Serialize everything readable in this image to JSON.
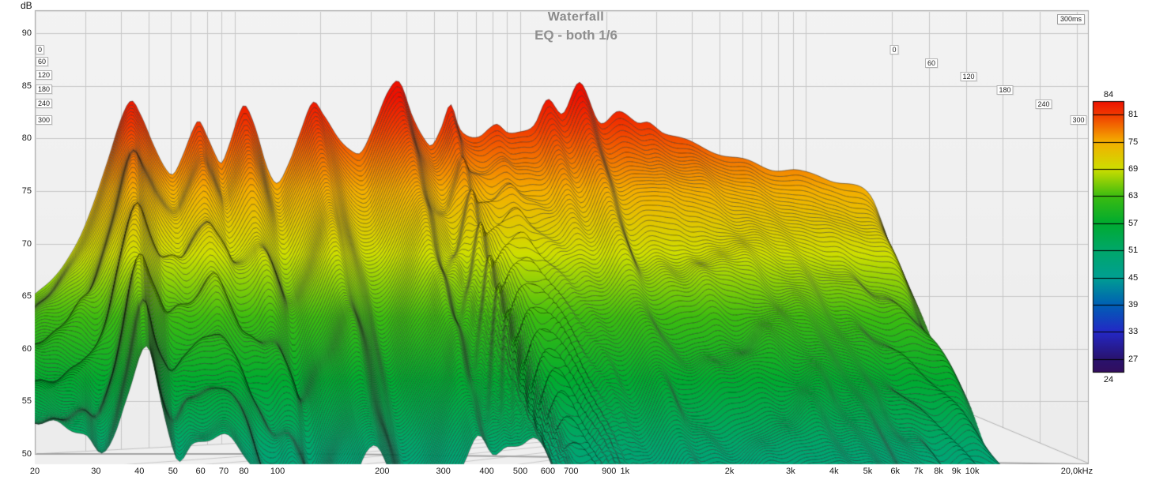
{
  "header": {
    "title": "Waterfall",
    "subtitle": "EQ - both 1/6",
    "window_badge": "300ms"
  },
  "chart_data": {
    "type": "waterfall",
    "title": "Waterfall",
    "subtitle": "EQ - both 1/6",
    "x_axis": {
      "unit": "Hz",
      "scale": "log",
      "min": 20,
      "max": 20000,
      "tick_values": [
        20,
        30,
        40,
        50,
        60,
        70,
        80,
        100,
        200,
        300,
        400,
        500,
        600,
        700,
        900,
        1000,
        2000,
        3000,
        4000,
        5000,
        6000,
        7000,
        8000,
        9000,
        10000,
        20000
      ],
      "tick_labels": [
        "20",
        "30",
        "40",
        "50",
        "60",
        "70",
        "80",
        "100",
        "200",
        "300",
        "400",
        "500",
        "600",
        "700",
        "900",
        "1k",
        "2k",
        "3k",
        "4k",
        "5k",
        "6k",
        "7k",
        "8k",
        "9k",
        "10k",
        "20,0kHz"
      ]
    },
    "y_axis": {
      "unit": "dB",
      "min": 50,
      "max": 90,
      "ticks": [
        90,
        85,
        80,
        75,
        70,
        65,
        60,
        55,
        50
      ]
    },
    "time_axis": {
      "unit": "ms",
      "min": 0,
      "max": 300,
      "window_label": "300ms",
      "ticks": [
        "0",
        "60",
        "120",
        "180",
        "240",
        "300"
      ]
    },
    "legend": {
      "top_value": "84",
      "bottom_value": "24",
      "side_values": [
        81,
        75,
        69,
        63,
        57,
        51,
        45,
        39,
        33,
        27
      ],
      "stops": [
        {
          "db": 84,
          "color": "#ee1100"
        },
        {
          "db": 81,
          "color": "#f13a00"
        },
        {
          "db": 75,
          "color": "#f4ae00"
        },
        {
          "db": 69,
          "color": "#cede00"
        },
        {
          "db": 63,
          "color": "#3cbc10"
        },
        {
          "db": 57,
          "color": "#00ab30"
        },
        {
          "db": 51,
          "color": "#00a76a"
        },
        {
          "db": 45,
          "color": "#009f92"
        },
        {
          "db": 39,
          "color": "#0060b4"
        },
        {
          "db": 33,
          "color": "#2428c6"
        },
        {
          "db": 27,
          "color": "#29136e"
        },
        {
          "db": 24,
          "color": "#330e5e"
        }
      ]
    },
    "slices": 100,
    "floor_db": 50,
    "envelope_t0": [
      [
        20,
        65.0
      ],
      [
        23,
        66.8
      ],
      [
        26,
        68.6
      ],
      [
        29,
        70.6
      ],
      [
        32,
        73.5
      ],
      [
        36,
        78.0
      ],
      [
        40,
        82.0
      ],
      [
        43.5,
        83.6
      ],
      [
        47,
        82.0
      ],
      [
        52,
        79.2
      ],
      [
        57,
        77.3
      ],
      [
        61,
        76.8
      ],
      [
        66,
        78.6
      ],
      [
        71,
        80.6
      ],
      [
        75,
        81.5
      ],
      [
        80,
        80.0
      ],
      [
        86,
        78.2
      ],
      [
        90,
        77.6
      ],
      [
        96,
        79.6
      ],
      [
        104,
        82.6
      ],
      [
        109,
        83.3
      ],
      [
        118,
        81.0
      ],
      [
        130,
        77.0
      ],
      [
        141,
        75.6
      ],
      [
        155,
        77.8
      ],
      [
        170,
        80.8
      ],
      [
        188,
        83.4
      ],
      [
        205,
        82.0
      ],
      [
        230,
        80.0
      ],
      [
        258,
        79.0
      ],
      [
        278,
        78.9
      ],
      [
        310,
        81.3
      ],
      [
        345,
        84.2
      ],
      [
        378,
        85.3
      ],
      [
        420,
        82.3
      ],
      [
        460,
        80.2
      ],
      [
        490,
        79.3
      ],
      [
        530,
        80.8
      ],
      [
        571,
        83.0
      ],
      [
        610,
        81.0
      ],
      [
        650,
        80.4
      ],
      [
        720,
        80.4
      ],
      [
        780,
        81.0
      ],
      [
        830,
        81.2
      ],
      [
        905,
        80.3
      ],
      [
        1000,
        80.6
      ],
      [
        1120,
        81.5
      ],
      [
        1245,
        83.8
      ],
      [
        1410,
        82.1
      ],
      [
        1620,
        85.3
      ],
      [
        1900,
        81.7
      ],
      [
        2200,
        82.4
      ],
      [
        2570,
        81.4
      ],
      [
        2830,
        81.7
      ],
      [
        3200,
        80.6
      ],
      [
        3700,
        79.8
      ],
      [
        4700,
        78.9
      ],
      [
        5500,
        78.2
      ],
      [
        6500,
        77.6
      ],
      [
        7500,
        77.2
      ],
      [
        8900,
        77.0
      ],
      [
        10000,
        76.6
      ],
      [
        12000,
        76.2
      ],
      [
        14800,
        75.5
      ],
      [
        16900,
        74.3
      ],
      [
        18500,
        72.0
      ],
      [
        20000,
        69.5
      ]
    ],
    "envelope_t300": [
      [
        20,
        60.5
      ],
      [
        24,
        59.5
      ],
      [
        28,
        58.5
      ],
      [
        31,
        56.5
      ],
      [
        34,
        58.0
      ],
      [
        37,
        62.0
      ],
      [
        40,
        66.5
      ],
      [
        41.5,
        67.5
      ],
      [
        43,
        66.8
      ],
      [
        46,
        62.0
      ],
      [
        49,
        58.5
      ],
      [
        52,
        56.5
      ],
      [
        57,
        58.0
      ],
      [
        65,
        58.0
      ],
      [
        75,
        57.5
      ],
      [
        85,
        55.5
      ],
      [
        95,
        52.0
      ],
      [
        105,
        49.5
      ],
      [
        115,
        51.5
      ],
      [
        125,
        50.5
      ],
      [
        135,
        48.0
      ],
      [
        150,
        52.0
      ],
      [
        165,
        54.0
      ],
      [
        180,
        56.5
      ],
      [
        195,
        57.0
      ],
      [
        215,
        54.0
      ],
      [
        235,
        51.0
      ],
      [
        255,
        48.5
      ],
      [
        280,
        50.5
      ],
      [
        310,
        53.5
      ],
      [
        345,
        56.0
      ],
      [
        380,
        58.3
      ],
      [
        420,
        56.0
      ],
      [
        460,
        57.0
      ],
      [
        500,
        58.0
      ],
      [
        540,
        58.5
      ],
      [
        580,
        57.5
      ],
      [
        640,
        55.0
      ],
      [
        720,
        53.5
      ],
      [
        820,
        52.0
      ],
      [
        950,
        50.5
      ],
      [
        1100,
        49.0
      ],
      [
        1300,
        48.0
      ],
      [
        1500,
        49.5
      ],
      [
        1700,
        52.0
      ],
      [
        1900,
        51.0
      ],
      [
        2200,
        50.0
      ],
      [
        2600,
        52.0
      ],
      [
        3000,
        53.5
      ],
      [
        3500,
        54.5
      ],
      [
        4200,
        55.0
      ],
      [
        5000,
        54.0
      ],
      [
        6000,
        53.0
      ],
      [
        7000,
        52.0
      ],
      [
        8000,
        50.5
      ],
      [
        9500,
        48.5
      ],
      [
        11000,
        47.0
      ],
      [
        13000,
        46.0
      ],
      [
        16000,
        44.5
      ],
      [
        20000,
        43.5
      ]
    ],
    "ringing": {
      "amp_base": 0.55,
      "amp_var": 0.45,
      "period_base": 62,
      "decay_shape": 0.88
    }
  }
}
